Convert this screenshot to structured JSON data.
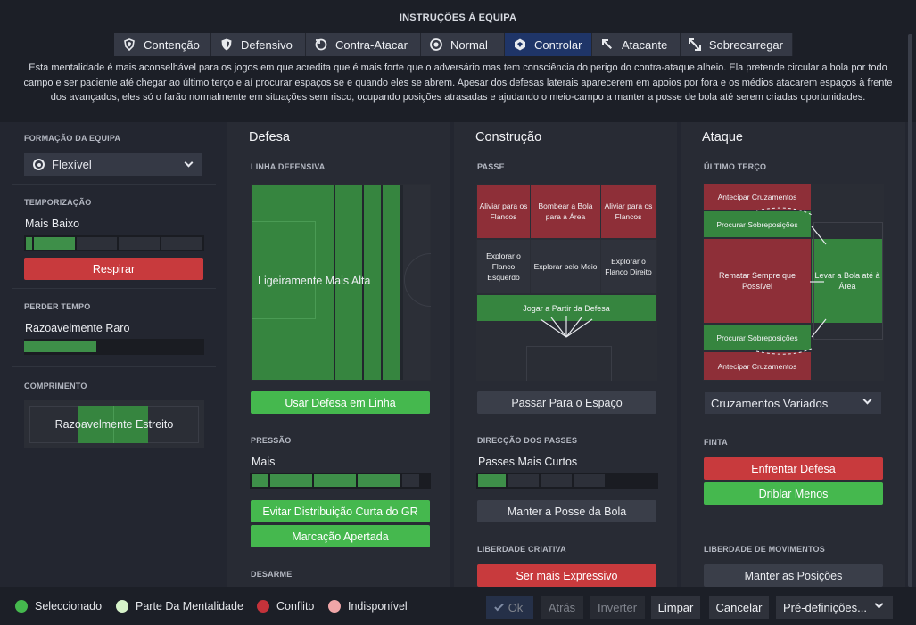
{
  "title": "INSTRUÇÕES À EQUIPA",
  "mentalities": [
    {
      "label": "Contenção",
      "icon": "shield-wings-icon"
    },
    {
      "label": "Defensivo",
      "icon": "shield-icon"
    },
    {
      "label": "Contra-Atacar",
      "icon": "counter-arrow-icon"
    },
    {
      "label": "Normal",
      "icon": "balanced-circle-icon"
    },
    {
      "label": "Controlar",
      "icon": "control-shield-icon"
    },
    {
      "label": "Atacante",
      "icon": "attack-arrow-icon"
    },
    {
      "label": "Sobrecarregar",
      "icon": "overload-arrows-icon"
    }
  ],
  "active_mentality": "Controlar",
  "description": "Esta mentalidade é mais aconselhável para os jogos em que acredita que é mais forte que o adversário mas tem consciência do perigo do contra-ataque alheio. Ela pretende circular a bola por todo campo e ser paciente até chegar ao último terço e aí procurar espaços se e quando eles se abrem. Apesar dos defesas laterais aparecerem em apoios por fora e os médios atacarem espaços à frente dos avançados, eles só o farão normalmente em situações sem risco, ocupando posições atrasadas e ajudando o meio-campo a manter a posse de bola até serem criadas oportunidades.",
  "left": {
    "formation_label": "FORMAÇÃO DA EQUIPA",
    "formation_value": "Flexível",
    "tempo_label": "TEMPORIZAÇÃO",
    "tempo_value": "Mais Baixo",
    "tempo_level": 0.25,
    "tempo_button": "Respirar",
    "timewasting_label": "PERDER TEMPO",
    "timewasting_value": "Razoavelmente Raro",
    "timewasting_level": 0.4,
    "width_label": "COMPRIMENTO",
    "width_value": "Razoavelmente Estreito"
  },
  "defesa": {
    "heading": "Defesa",
    "line_label": "LINHA DEFENSIVA",
    "line_value": "Ligeiramente Mais Alta",
    "line_button": "Usar Defesa em Linha",
    "press_label": "PRESSÃO",
    "press_value": "Mais",
    "press_level": 0.75,
    "press_buttons": [
      "Evitar Distribuição Curta do GR",
      "Marcação Apertada"
    ],
    "tackle_label": "DESARME"
  },
  "construcao": {
    "heading": "Construção",
    "pass_label": "PASSE",
    "zones": [
      "Aliviar para os Flancos",
      "Bombear a Bola para a Área",
      "Aliviar para os Flancos",
      "Explorar o Flanco Esquerdo",
      "Explorar pelo Meio",
      "Explorar o Flanco Direito",
      "Jogar a Partir da Defesa"
    ],
    "space_button": "Passar Para o Espaço",
    "direction_label": "DIRECÇÃO DOS PASSES",
    "direction_value": "Passes Mais Curtos",
    "direction_level": 0.2,
    "possession_button": "Manter a Posse da Bola",
    "creative_label": "LIBERDADE CRIATIVA",
    "creative_button": "Ser mais Expressivo"
  },
  "ataque": {
    "heading": "Ataque",
    "final_label": "ÚLTIMO TERÇO",
    "zones": [
      "Antecipar Cruzamentos",
      "Procurar Sobreposições",
      "Rematar Sempre que Possível",
      "Levar a Bola até à Área",
      "Procurar Sobreposições",
      "Antecipar Cruzamentos"
    ],
    "cross_value": "Cruzamentos Variados",
    "dribble_label": "FINTA",
    "dribble_buttons": [
      "Enfrentar Defesa",
      "Driblar Menos"
    ],
    "movement_label": "LIBERDADE DE MOVIMENTOS",
    "movement_button": "Manter as Posições"
  },
  "legend": [
    {
      "label": "Seleccionado",
      "color": "#45b84e"
    },
    {
      "label": "Parte Da Mentalidade",
      "color": "#d6f2c9"
    },
    {
      "label": "Conflito",
      "color": "#c4323a"
    },
    {
      "label": "Indisponível",
      "color": "#f0a6a8"
    }
  ],
  "footer": {
    "ok": "Ok",
    "back": "Atrás",
    "invert": "Inverter",
    "clear": "Limpar",
    "cancel": "Cancelar",
    "presets": "Pré-definições..."
  }
}
